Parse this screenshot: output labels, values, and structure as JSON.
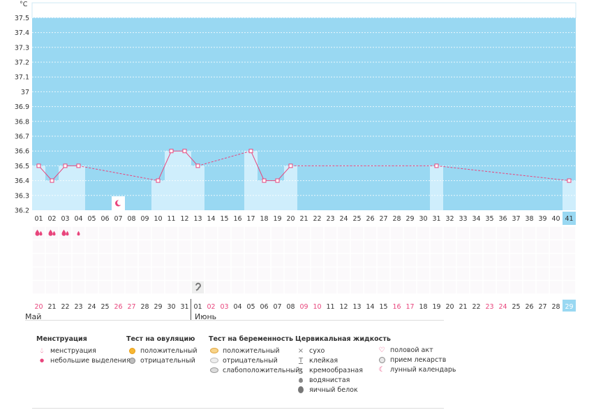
{
  "chart_data": {
    "type": "line",
    "unit": "°C",
    "y_ticks": [
      "36.2",
      "36.3",
      "36.4",
      "36.5",
      "36.6",
      "36.7",
      "36.8",
      "36.9",
      "37",
      "37.1",
      "37.2",
      "37.3",
      "37.4",
      "37.5"
    ],
    "ylim": [
      36.2,
      37.6
    ],
    "cycle_days": [
      "01",
      "02",
      "03",
      "04",
      "05",
      "06",
      "07",
      "08",
      "09",
      "10",
      "11",
      "12",
      "13",
      "14",
      "15",
      "16",
      "17",
      "18",
      "19",
      "20",
      "21",
      "22",
      "23",
      "24",
      "25",
      "26",
      "27",
      "28",
      "29",
      "30",
      "31",
      "32",
      "33",
      "34",
      "35",
      "36",
      "37",
      "38",
      "39",
      "40",
      "41"
    ],
    "dates": [
      "20",
      "21",
      "22",
      "23",
      "24",
      "25",
      "26",
      "27",
      "28",
      "29",
      "30",
      "31",
      "01",
      "02",
      "03",
      "04",
      "05",
      "06",
      "07",
      "08",
      "09",
      "10",
      "11",
      "12",
      "13",
      "14",
      "15",
      "16",
      "17",
      "18",
      "19",
      "20",
      "21",
      "22",
      "23",
      "24",
      "25",
      "26",
      "27",
      "28",
      "29"
    ],
    "weekend_date_indices": [
      0,
      6,
      7,
      13,
      14,
      20,
      21,
      27,
      28,
      34,
      35
    ],
    "highlighted_day_index": 40,
    "temperatures": [
      {
        "day": 1,
        "value": 36.5
      },
      {
        "day": 2,
        "value": 36.4
      },
      {
        "day": 3,
        "value": 36.5
      },
      {
        "day": 4,
        "value": 36.5
      },
      {
        "day": 10,
        "value": 36.4
      },
      {
        "day": 11,
        "value": 36.6
      },
      {
        "day": 12,
        "value": 36.6
      },
      {
        "day": 13,
        "value": 36.5
      },
      {
        "day": 17,
        "value": 36.6
      },
      {
        "day": 18,
        "value": 36.4
      },
      {
        "day": 19,
        "value": 36.4
      },
      {
        "day": 20,
        "value": 36.5
      },
      {
        "day": 31,
        "value": 36.5
      },
      {
        "day": 41,
        "value": 36.4
      }
    ],
    "menstruation": [
      {
        "day": 1,
        "type": "heavy"
      },
      {
        "day": 2,
        "type": "heavy"
      },
      {
        "day": 3,
        "type": "heavy"
      },
      {
        "day": 4,
        "type": "light"
      }
    ],
    "moon_day": 7,
    "cervical_creamy_day": 13,
    "colors": {
      "sky": "#99d8f2",
      "bar": "#cfeefc",
      "line": "#e8457c",
      "weekend": "#e8457c",
      "highlight": "#99d8f2"
    }
  },
  "months": {
    "may": "Май",
    "june": "Июнь"
  },
  "legend": {
    "menstruation": {
      "title": "Менструация",
      "heavy": "менструация",
      "light": "небольшие выделения"
    },
    "ovulation": {
      "title": "Тест на овуляцию",
      "positive": "положительный",
      "negative": "отрицательный"
    },
    "pregnancy": {
      "title": "Тест на беременность",
      "positive": "положительный",
      "negative": "отрицательный",
      "weak": "слабоположительный"
    },
    "cervical": {
      "title": "Цервикальная жидкость",
      "dry": "сухо",
      "sticky": "клейкая",
      "creamy": "кремообразная",
      "watery": "водянистая",
      "eggwhite": "яичный белок"
    },
    "other": {
      "intercourse": "половой акт",
      "medication": "прием лекарств",
      "lunar": "лунный календарь"
    }
  }
}
